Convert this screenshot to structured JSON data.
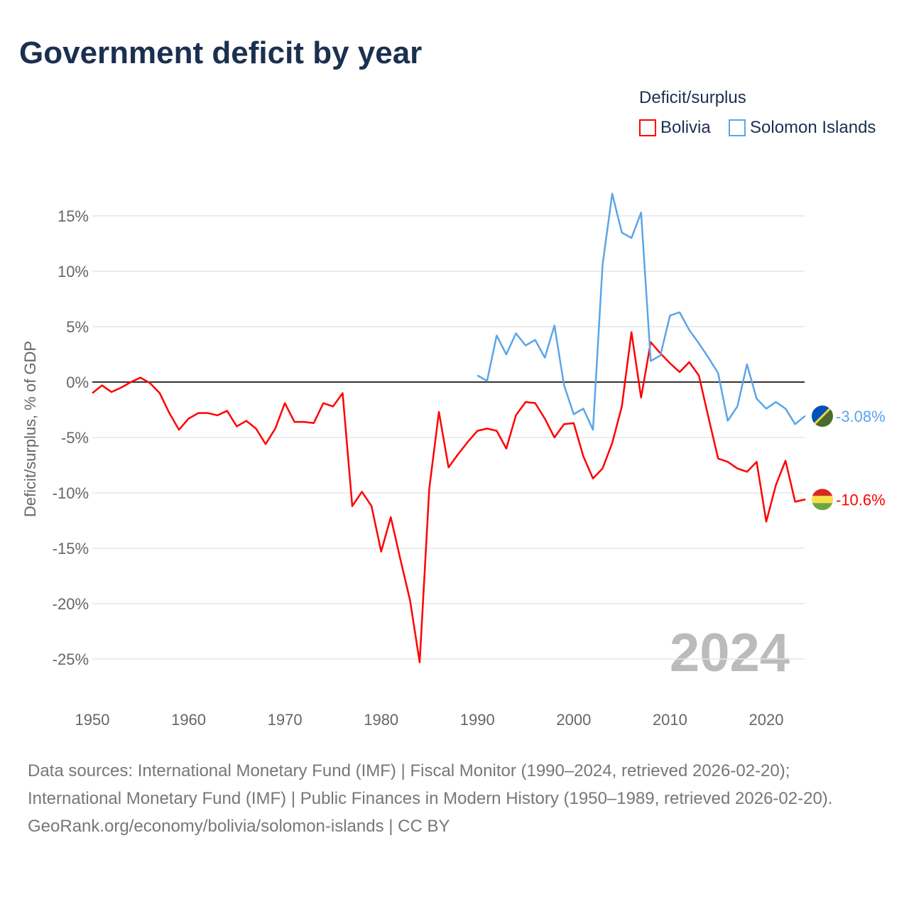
{
  "chart_data": {
    "type": "line",
    "title": "Government deficit by year",
    "ylabel": "Deficit/surplus, % of GDP",
    "xlabel": "",
    "xlim": [
      1950,
      2024
    ],
    "ylim": [
      -28,
      18
    ],
    "x_ticks": [
      1950,
      1960,
      1970,
      1980,
      1990,
      2000,
      2010,
      2020
    ],
    "x_tick_labels": [
      "1950",
      "1960",
      "1970",
      "1980",
      "1990",
      "2000",
      "2010",
      "2020"
    ],
    "y_ticks": [
      15,
      10,
      5,
      0,
      -5,
      -10,
      -15,
      -20,
      -25
    ],
    "y_tick_labels": [
      "15%",
      "10%",
      "5%",
      "0%",
      "-5%",
      "-10%",
      "-15%",
      "-20%",
      "-25%"
    ],
    "grid": true,
    "legend_title": "Deficit/surplus",
    "legend_position": "top-right",
    "year_label": "2024",
    "series": [
      {
        "name": "Bolivia",
        "color": "#ff0000",
        "end_label": "-10.6%",
        "start_year": 1950,
        "values": [
          -1.0,
          -0.3,
          -0.9,
          -0.5,
          0.0,
          0.4,
          -0.1,
          -1.0,
          -2.8,
          -4.3,
          -3.3,
          -2.8,
          -2.8,
          -3.0,
          -2.6,
          -4.0,
          -3.5,
          -4.2,
          -5.6,
          -4.2,
          -1.9,
          -3.6,
          -3.6,
          -3.7,
          -1.9,
          -2.2,
          -1.0,
          -11.2,
          -9.9,
          -11.2,
          -15.3,
          -12.2,
          -16.0,
          -19.7,
          -25.3,
          -9.6,
          -2.7,
          -7.7,
          -6.5,
          -5.4,
          -4.4,
          -4.2,
          -4.4,
          -6.0,
          -3.0,
          -1.8,
          -1.9,
          -3.3,
          -5.0,
          -3.8,
          -3.7,
          -6.7,
          -8.7,
          -7.8,
          -5.5,
          -2.2,
          4.5,
          -1.4,
          3.6,
          2.6,
          1.7,
          0.9,
          1.8,
          0.6,
          -3.2,
          -6.9,
          -7.2,
          -7.8,
          -8.1,
          -7.2,
          -12.6,
          -9.3,
          -7.1,
          -10.8,
          -10.6
        ]
      },
      {
        "name": "Solomon Islands",
        "color": "#5aa5ea",
        "end_label": "-3.08%",
        "start_year": 1990,
        "values": [
          0.6,
          0.1,
          4.2,
          2.5,
          4.4,
          3.3,
          3.8,
          2.2,
          5.1,
          -0.3,
          -2.9,
          -2.4,
          -4.3,
          10.6,
          17.0,
          13.5,
          13.0,
          15.3,
          1.9,
          2.4,
          6.0,
          6.3,
          4.7,
          3.5,
          2.2,
          0.8,
          -3.5,
          -2.2,
          1.6,
          -1.5,
          -2.4,
          -1.8,
          -2.4,
          -3.8,
          -3.08
        ]
      }
    ]
  },
  "sources": {
    "line1": "Data sources: International Monetary Fund (IMF) | Fiscal Monitor (1990–2024, retrieved 2026-02-20); International Monetary Fund (IMF) | Public Finances in Modern History (1950–1989, retrieved 2026-02-20).",
    "line2": "GeoRank.org/economy/bolivia/solomon-islands | CC BY"
  }
}
